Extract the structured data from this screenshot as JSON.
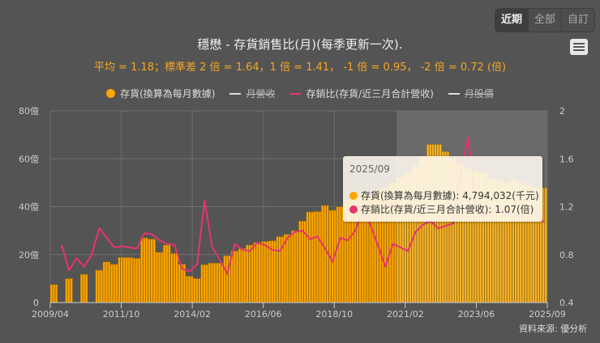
{
  "range_buttons": [
    {
      "label": "近期",
      "active": true
    },
    {
      "label": "全部",
      "active": false
    },
    {
      "label": "自訂",
      "active": false
    }
  ],
  "menu_icon": "hamburger-menu-icon",
  "title": "穩懋 - 存貨銷售比(月)(每季更新一次).",
  "subtitle": "平均 = 1.18；標準差 2 倍 = 1.64，1 倍 = 1.41， -1 倍 = 0.95， -2 倍 = 0.72 (倍)",
  "legend": [
    {
      "label": "存貨(換算為每月數據)",
      "symbol": "dot",
      "color": "#ffa500",
      "visible": true
    },
    {
      "label": "月營收",
      "symbol": "dash",
      "color": "#dddddd",
      "visible": false
    },
    {
      "label": "存銷比(存貨/近三月合計營收)",
      "symbol": "dash",
      "color": "#e8336d",
      "visible": true
    },
    {
      "label": "月股價",
      "symbol": "dash",
      "color": "#dddddd",
      "visible": false
    }
  ],
  "tooltip": {
    "date": "2025/09",
    "rows": [
      {
        "color": "#ffa500",
        "text": "存貨(換算為每月數據): 4,794,032(千元)"
      },
      {
        "color": "#e8336d",
        "text": "存銷比(存貨/近三月合計營收): 1.07(倍)"
      }
    ]
  },
  "source": "資料來源: 優分析",
  "chart_data": {
    "type": "bar+line",
    "title": "穩懋 - 存貨銷售比(月)(每季更新一次).",
    "x_ticks": [
      "2009/04",
      "2011/10",
      "2014/02",
      "2016/06",
      "2018/10",
      "2021/02",
      "2023/06",
      "2025/09"
    ],
    "y_left": {
      "label": "存貨",
      "ticks": [
        "0",
        "20億",
        "40億",
        "60億",
        "80億"
      ],
      "range": [
        0,
        80
      ],
      "unit": "億"
    },
    "y_right": {
      "label": "存銷比",
      "ticks": [
        "0.4",
        "0.8",
        "1.2",
        "1.6",
        "2"
      ],
      "range": [
        0.4,
        2.0
      ],
      "unit": "倍"
    },
    "grid": true,
    "highlight_range": [
      "2020/12",
      "2025/09"
    ],
    "x": [
      "2009Q2",
      "2009Q3",
      "2009Q4",
      "2010Q1",
      "2010Q2",
      "2010Q3",
      "2010Q4",
      "2011Q1",
      "2011Q2",
      "2011Q3",
      "2011Q4",
      "2012Q1",
      "2012Q2",
      "2012Q3",
      "2012Q4",
      "2013Q1",
      "2013Q2",
      "2013Q3",
      "2013Q4",
      "2014Q1",
      "2014Q2",
      "2014Q3",
      "2014Q4",
      "2015Q1",
      "2015Q2",
      "2015Q3",
      "2015Q4",
      "2016Q1",
      "2016Q2",
      "2016Q3",
      "2016Q4",
      "2017Q1",
      "2017Q2",
      "2017Q3",
      "2017Q4",
      "2018Q1",
      "2018Q2",
      "2018Q3",
      "2018Q4",
      "2019Q1",
      "2019Q2",
      "2019Q3",
      "2019Q4",
      "2020Q1",
      "2020Q2",
      "2020Q3",
      "2020Q4",
      "2021Q1",
      "2021Q2",
      "2021Q3",
      "2021Q4",
      "2022Q1",
      "2022Q2",
      "2022Q3",
      "2022Q4",
      "2023Q1",
      "2023Q2",
      "2023Q3",
      "2023Q4",
      "2024Q1",
      "2024Q2",
      "2024Q3",
      "2024Q4",
      "2025Q1",
      "2025Q2",
      "2025Q3"
    ],
    "series": [
      {
        "name": "存貨(換算為每月數據)",
        "type": "bar",
        "unit": "億",
        "color": "#ffa500",
        "values": [
          7.5,
          0,
          10,
          0,
          11.8,
          0,
          13.5,
          17,
          16,
          18.8,
          18.8,
          18.5,
          27,
          26.5,
          21,
          24,
          20.5,
          16,
          11,
          10,
          15.8,
          16.5,
          16.5,
          19.5,
          21.5,
          22.5,
          24,
          25,
          25.5,
          25.8,
          27.5,
          28.5,
          30,
          34,
          37.8,
          38,
          40.5,
          38.5,
          40,
          43,
          44,
          45.5,
          45,
          47,
          48,
          50,
          52,
          54,
          57,
          61,
          66,
          66,
          63,
          60,
          58,
          56,
          55,
          54,
          52,
          51,
          50,
          51,
          50,
          49,
          48,
          47.9
        ]
      },
      {
        "name": "存銷比(存貨/近三月合計營收)",
        "type": "line",
        "unit": "倍",
        "color": "#e8336d",
        "values": [
          null,
          0.88,
          0.67,
          0.77,
          0.7,
          0.8,
          1.02,
          0.94,
          0.86,
          0.87,
          0.86,
          0.85,
          0.98,
          0.97,
          0.92,
          0.89,
          0.88,
          0.68,
          0.66,
          0.72,
          1.25,
          0.86,
          0.76,
          0.64,
          0.89,
          0.84,
          0.83,
          0.9,
          0.88,
          0.84,
          0.83,
          0.94,
          0.99,
          1.0,
          0.93,
          0.95,
          0.85,
          0.74,
          0.94,
          0.92,
          1.0,
          1.16,
          1.05,
          0.88,
          0.7,
          0.89,
          0.86,
          0.83,
          0.99,
          1.05,
          1.08,
          1.02,
          1.04,
          1.06,
          1.48,
          1.78,
          1.2,
          1.12,
          1.15,
          1.18,
          1.13,
          1.16,
          1.1,
          1.2,
          1.15,
          1.07
        ]
      }
    ]
  }
}
